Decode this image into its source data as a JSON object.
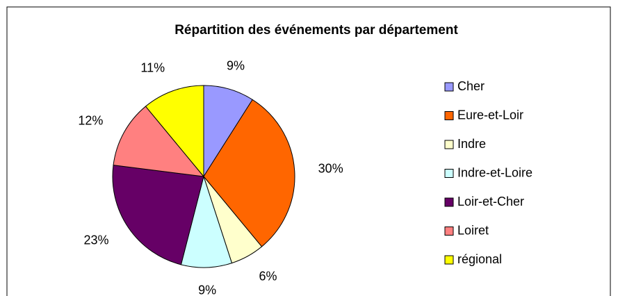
{
  "chart_data": {
    "type": "pie",
    "title": "Répartition des événements par département",
    "categories": [
      "Cher",
      "Eure-et-Loir",
      "Indre",
      "Indre-et-Loire",
      "Loir-et-Cher",
      "Loiret",
      "régional"
    ],
    "values": [
      9,
      30,
      6,
      9,
      23,
      12,
      11
    ],
    "value_labels": [
      "9%",
      "30%",
      "6%",
      "9%",
      "23%",
      "12%",
      "11%"
    ],
    "colors": [
      "#9999ff",
      "#ff6600",
      "#ffffcc",
      "#ccffff",
      "#660066",
      "#ff8080",
      "#ffff00"
    ],
    "legend": "right"
  }
}
